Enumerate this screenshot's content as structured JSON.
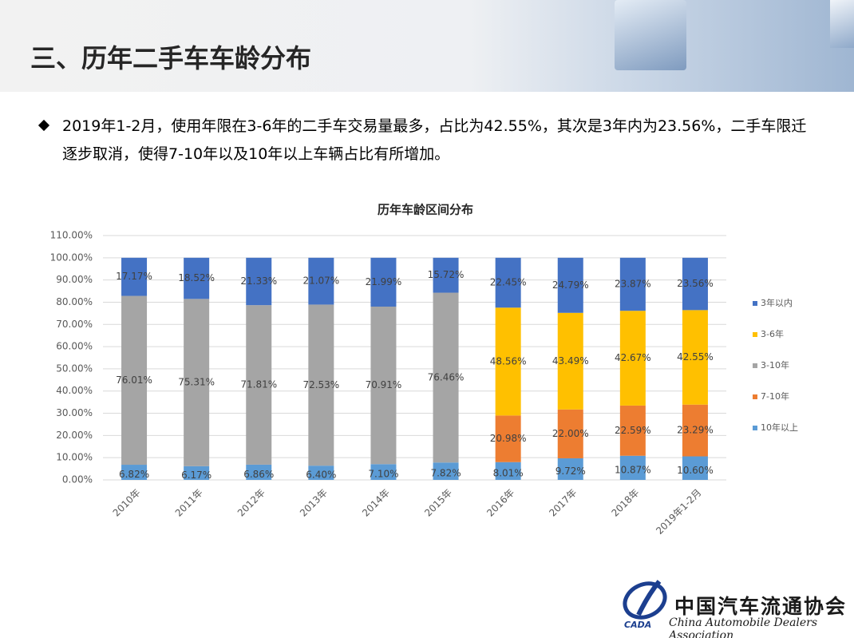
{
  "header": {
    "title": "三、历年二手车车龄分布"
  },
  "bullet": "2019年1-2月，使用年限在3-6年的二手车交易量最多，占比为42.55%，其次是3年内为23.56%，二手车限迁逐步取消，使得7-10年以及10年以上车辆占比有所增加。",
  "chart_data": {
    "type": "stacked_bar",
    "title": "历年车龄区间分布",
    "categories": [
      "2010年",
      "2011年",
      "2012年",
      "2013年",
      "2014年",
      "2015年",
      "2016年",
      "2017年",
      "2018年",
      "2019年1-2月"
    ],
    "series": [
      {
        "name": "10年以上",
        "color": "#5b9bd5",
        "values": [
          6.82,
          6.17,
          6.86,
          6.4,
          7.1,
          7.82,
          8.01,
          9.72,
          10.87,
          10.6
        ],
        "value_labels": [
          "6.82%",
          "6.17%",
          "6.86%",
          "6.40%",
          "7.10%",
          "7.82%",
          "8.01%",
          "9.72%",
          "10.87%",
          "10.60%"
        ]
      },
      {
        "name": "7-10年",
        "color": "#ed7d31",
        "values": [
          null,
          null,
          null,
          null,
          null,
          null,
          20.98,
          22.0,
          22.59,
          23.29
        ],
        "value_labels": [
          null,
          null,
          null,
          null,
          null,
          null,
          "20.98%",
          "22.00%",
          "22.59%",
          "23.29%"
        ]
      },
      {
        "name": "3-10年",
        "color": "#a5a5a5",
        "values": [
          76.01,
          75.31,
          71.81,
          72.53,
          70.91,
          76.46,
          null,
          null,
          null,
          null
        ],
        "value_labels": [
          "76.01%",
          "75.31%",
          "71.81%",
          "72.53%",
          "70.91%",
          "76.46%",
          null,
          null,
          null,
          null
        ]
      },
      {
        "name": "3-6年",
        "color": "#ffc000",
        "values": [
          null,
          null,
          null,
          null,
          null,
          null,
          48.56,
          43.49,
          42.67,
          42.55
        ],
        "value_labels": [
          null,
          null,
          null,
          null,
          null,
          null,
          "48.56%",
          "43.49%",
          "42.67%",
          "42.55%"
        ]
      },
      {
        "name": "3年以内",
        "color": "#4472c4",
        "values": [
          17.17,
          18.52,
          21.33,
          21.07,
          21.99,
          15.72,
          22.45,
          24.79,
          23.87,
          23.56
        ],
        "value_labels": [
          "17.17%",
          "18.52%",
          "21.33%",
          "21.07%",
          "21.99%",
          "15.72%",
          "22.45%",
          "24.79%",
          "23.87%",
          "23.56%"
        ]
      }
    ],
    "ylim": [
      0,
      110
    ],
    "yticks": [
      {
        "value": 0,
        "label": "0.00%"
      },
      {
        "value": 10,
        "label": "10.00%"
      },
      {
        "value": 20,
        "label": "20.00%"
      },
      {
        "value": 30,
        "label": "30.00%"
      },
      {
        "value": 40,
        "label": "40.00%"
      },
      {
        "value": 50,
        "label": "50.00%"
      },
      {
        "value": 60,
        "label": "60.00%"
      },
      {
        "value": 70,
        "label": "70.00%"
      },
      {
        "value": 80,
        "label": "80.00%"
      },
      {
        "value": 90,
        "label": "90.00%"
      },
      {
        "value": 100,
        "label": "100.00%"
      },
      {
        "value": 110,
        "label": "110.00%"
      }
    ],
    "grid": true,
    "legend": "right"
  },
  "logo": {
    "cn": "中国汽车流通协会",
    "en": "China Automobile Dealers Association",
    "abbr": "CADA"
  }
}
